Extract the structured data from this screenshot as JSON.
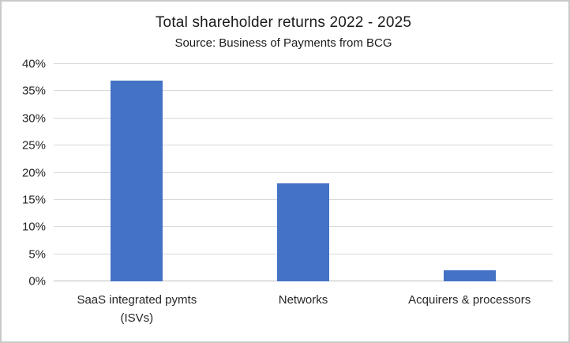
{
  "chart_data": {
    "type": "bar",
    "title": "Total shareholder returns 2022 - 2025",
    "subtitle": "Source: Business of Payments from BCG",
    "categories": [
      "SaaS integrated pymts (ISVs)",
      "Networks",
      "Acquirers & processors"
    ],
    "values": [
      37,
      18,
      2
    ],
    "xlabel": "",
    "ylabel": "",
    "ylim": [
      0,
      40
    ],
    "yticks": [
      0,
      5,
      10,
      15,
      20,
      25,
      30,
      35,
      40
    ],
    "ytick_suffix": "%",
    "grid": true,
    "legend_position": "none",
    "colors": {
      "bar": "#4472C4",
      "gridline": "#D9D9D9",
      "axis_line": "#BFBFBF",
      "text": "#262626",
      "frame_border": "#C9C9C9",
      "background": "#FFFFFF"
    }
  }
}
